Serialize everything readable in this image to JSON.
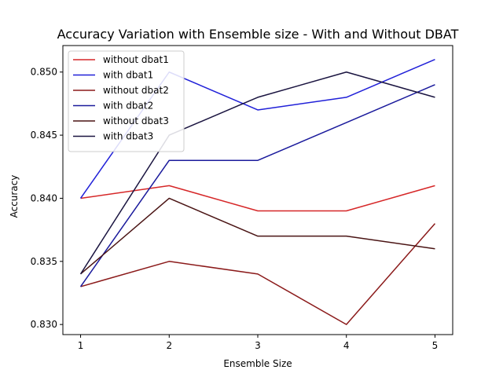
{
  "chart_data": {
    "type": "line",
    "title": "Accuracy Variation with Ensemble size - With and Without DBAT",
    "xlabel": "Ensemble Size",
    "ylabel": "Accuracy",
    "x": [
      1,
      2,
      3,
      4,
      5
    ],
    "xticks": [
      "1",
      "2",
      "3",
      "4",
      "5"
    ],
    "yticks": [
      "0.830",
      "0.835",
      "0.840",
      "0.845",
      "0.850"
    ],
    "ytick_values": [
      0.83,
      0.835,
      0.84,
      0.845,
      0.85
    ],
    "xlim": [
      0.8,
      5.2
    ],
    "ylim": [
      0.8292,
      0.8521
    ],
    "grid": false,
    "legend_position": "top-left",
    "series": [
      {
        "name": "without dbat1",
        "color": "#d62728",
        "values": [
          0.84,
          0.841,
          0.839,
          0.839,
          0.841
        ]
      },
      {
        "name": "with dbat1",
        "color": "#2020d8",
        "values": [
          0.84,
          0.85,
          0.847,
          0.848,
          0.851
        ]
      },
      {
        "name": "without dbat2",
        "color": "#8b1a1a",
        "values": [
          0.833,
          0.835,
          0.834,
          0.83,
          0.838
        ]
      },
      {
        "name": "with dbat2",
        "color": "#1a1a9c",
        "values": [
          0.833,
          0.843,
          0.843,
          0.846,
          0.849
        ]
      },
      {
        "name": "without dbat3",
        "color": "#4a1414",
        "values": [
          0.834,
          0.84,
          0.837,
          0.837,
          0.836
        ]
      },
      {
        "name": "with dbat3",
        "color": "#1a1440",
        "values": [
          0.834,
          0.845,
          0.848,
          0.85,
          0.848
        ]
      }
    ]
  }
}
